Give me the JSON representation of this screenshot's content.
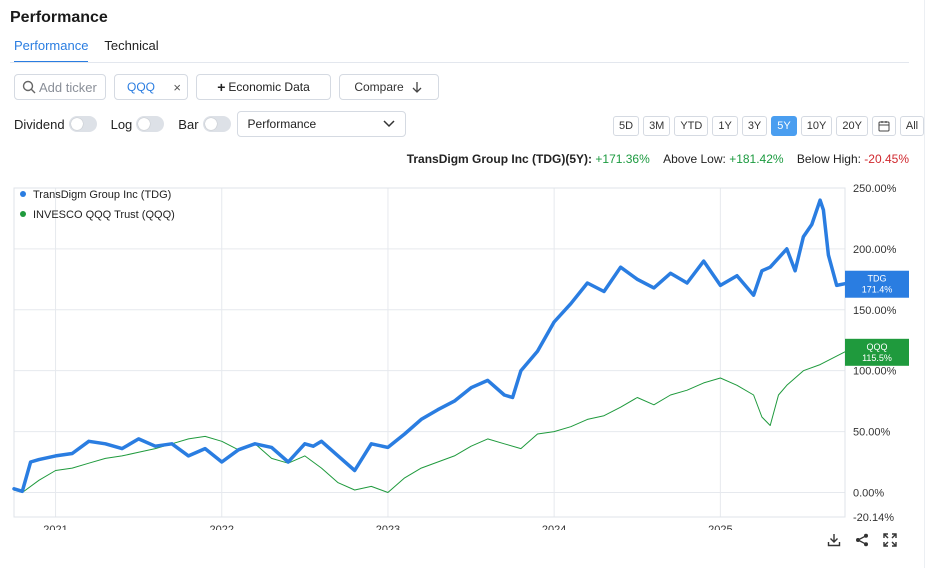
{
  "title": "Performance",
  "tabs": [
    {
      "label": "Performance",
      "active": true
    },
    {
      "label": "Technical",
      "active": false
    }
  ],
  "toolbar": {
    "search_placeholder": "Add ticker",
    "chip_label": "QQQ",
    "chip_close": "×",
    "econ_label": "Economic Data",
    "compare_label": "Compare"
  },
  "options": {
    "dividend_label": "Dividend",
    "log_label": "Log",
    "bar_label": "Bar",
    "select_value": "Performance"
  },
  "ranges": [
    "5D",
    "3M",
    "YTD",
    "1Y",
    "3Y",
    "5Y",
    "10Y",
    "20Y",
    "calendar-icon",
    "All"
  ],
  "active_range": "5Y",
  "summary": {
    "name": "TransDigm Group Inc (TDG)(5Y):",
    "change": "+171.36%",
    "above_low_label": "Above Low:",
    "above_low": "+181.42%",
    "below_high_label": "Below High:",
    "below_high": "-20.45%"
  },
  "colors": {
    "tdg": "#2a7de1",
    "qqq": "#1f9a3d",
    "accent": "#2a7de1",
    "negative": "#d0282e",
    "positive": "#1b9a3f"
  },
  "chart_data": {
    "type": "line",
    "x_ticks": [
      "2021",
      "2022",
      "2023",
      "2024",
      "2025"
    ],
    "x_tick_years": [
      2021,
      2022,
      2023,
      2024,
      2025
    ],
    "xlim": [
      2020.75,
      2025.75
    ],
    "y_ticks": [
      "250.00%",
      "200.00%",
      "150.00%",
      "100.00%",
      "50.00%",
      "0.00%",
      "-20.14%"
    ],
    "ylim": [
      -20.14,
      250
    ],
    "series": [
      {
        "name": "TransDigm Group Inc (TDG)",
        "badge_ticker": "TDG",
        "badge_value": "171.4%",
        "last": 171.4,
        "x": [
          2020.75,
          2020.8,
          2020.85,
          2020.9,
          2021.0,
          2021.1,
          2021.2,
          2021.3,
          2021.4,
          2021.5,
          2021.6,
          2021.7,
          2021.8,
          2021.9,
          2022.0,
          2022.1,
          2022.2,
          2022.3,
          2022.4,
          2022.5,
          2022.55,
          2022.6,
          2022.7,
          2022.8,
          2022.9,
          2023.0,
          2023.1,
          2023.2,
          2023.3,
          2023.4,
          2023.5,
          2023.6,
          2023.7,
          2023.75,
          2023.8,
          2023.9,
          2024.0,
          2024.1,
          2024.2,
          2024.3,
          2024.4,
          2024.5,
          2024.6,
          2024.7,
          2024.8,
          2024.9,
          2025.0,
          2025.1,
          2025.2,
          2025.25,
          2025.3,
          2025.4,
          2025.45,
          2025.5,
          2025.55,
          2025.6,
          2025.62,
          2025.65,
          2025.7,
          2025.75
        ],
        "y": [
          3,
          1,
          25,
          27,
          30,
          32,
          42,
          40,
          36,
          44,
          38,
          40,
          30,
          36,
          25,
          35,
          40,
          37,
          25,
          40,
          38,
          42,
          30,
          18,
          40,
          37,
          48,
          60,
          68,
          75,
          86,
          92,
          80,
          78,
          100,
          116,
          140,
          155,
          172,
          165,
          185,
          175,
          168,
          180,
          172,
          190,
          170,
          178,
          162,
          182,
          185,
          200,
          182,
          210,
          220,
          240,
          232,
          195,
          170,
          171.4
        ]
      },
      {
        "name": "INVESCO QQQ Trust (QQQ)",
        "badge_ticker": "QQQ",
        "badge_value": "115.5%",
        "last": 115.5,
        "x": [
          2020.75,
          2020.8,
          2020.9,
          2021.0,
          2021.1,
          2021.2,
          2021.3,
          2021.4,
          2021.5,
          2021.6,
          2021.7,
          2021.8,
          2021.9,
          2022.0,
          2022.1,
          2022.2,
          2022.3,
          2022.4,
          2022.5,
          2022.6,
          2022.7,
          2022.8,
          2022.9,
          2023.0,
          2023.1,
          2023.2,
          2023.3,
          2023.4,
          2023.5,
          2023.6,
          2023.7,
          2023.8,
          2023.9,
          2024.0,
          2024.1,
          2024.2,
          2024.3,
          2024.4,
          2024.5,
          2024.6,
          2024.7,
          2024.8,
          2024.9,
          2025.0,
          2025.1,
          2025.2,
          2025.25,
          2025.3,
          2025.35,
          2025.4,
          2025.5,
          2025.6,
          2025.7,
          2025.75
        ],
        "y": [
          2,
          0,
          10,
          18,
          20,
          24,
          28,
          30,
          33,
          36,
          40,
          44,
          46,
          42,
          35,
          40,
          28,
          24,
          30,
          20,
          8,
          2,
          5,
          0,
          12,
          20,
          25,
          30,
          38,
          44,
          40,
          36,
          48,
          50,
          54,
          60,
          63,
          70,
          78,
          72,
          80,
          84,
          90,
          94,
          88,
          80,
          62,
          55,
          80,
          88,
          100,
          105,
          112,
          115.5
        ]
      }
    ]
  }
}
